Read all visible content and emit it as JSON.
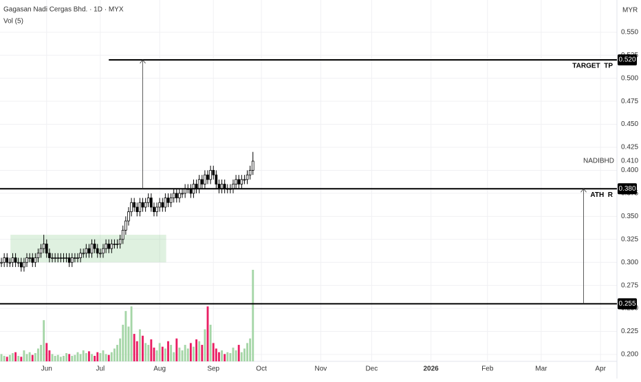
{
  "chart_data": {
    "type": "candlestick",
    "title": "Gagasan Nadi Cergas Bhd. · 1D · MYX",
    "volume_label": "Vol (5)",
    "currency": "MYR",
    "symbol": "NADIBHD",
    "last_price": {
      "value": 0.41,
      "label": "0.410"
    },
    "open": [
      0.3,
      0.3,
      0.305,
      0.3,
      0.3,
      0.305,
      0.3,
      0.3,
      0.295,
      0.3,
      0.305,
      0.305,
      0.3,
      0.305,
      0.31,
      0.315,
      0.32,
      0.31,
      0.305,
      0.305,
      0.305,
      0.305,
      0.305,
      0.305,
      0.305,
      0.3,
      0.305,
      0.305,
      0.305,
      0.31,
      0.31,
      0.315,
      0.31,
      0.32,
      0.315,
      0.31,
      0.31,
      0.315,
      0.32,
      0.315,
      0.32,
      0.32,
      0.32,
      0.325,
      0.335,
      0.345,
      0.355,
      0.365,
      0.36,
      0.355,
      0.365,
      0.36,
      0.365,
      0.37,
      0.36,
      0.355,
      0.36,
      0.365,
      0.36,
      0.37,
      0.365,
      0.37,
      0.375,
      0.37,
      0.375,
      0.375,
      0.38,
      0.38,
      0.375,
      0.385,
      0.38,
      0.39,
      0.385,
      0.395,
      0.39,
      0.4,
      0.395,
      0.385,
      0.38,
      0.385,
      0.38,
      0.38,
      0.38,
      0.385,
      0.39,
      0.385,
      0.39,
      0.39,
      0.395,
      0.4
    ],
    "high": [
      0.305,
      0.31,
      0.31,
      0.305,
      0.31,
      0.31,
      0.305,
      0.305,
      0.305,
      0.31,
      0.31,
      0.31,
      0.31,
      0.315,
      0.32,
      0.33,
      0.325,
      0.315,
      0.31,
      0.31,
      0.31,
      0.31,
      0.31,
      0.31,
      0.31,
      0.31,
      0.31,
      0.31,
      0.315,
      0.315,
      0.32,
      0.32,
      0.325,
      0.325,
      0.32,
      0.315,
      0.32,
      0.325,
      0.325,
      0.325,
      0.325,
      0.325,
      0.33,
      0.34,
      0.35,
      0.36,
      0.37,
      0.37,
      0.365,
      0.37,
      0.37,
      0.37,
      0.375,
      0.375,
      0.365,
      0.365,
      0.37,
      0.37,
      0.375,
      0.375,
      0.375,
      0.38,
      0.38,
      0.38,
      0.38,
      0.385,
      0.385,
      0.385,
      0.39,
      0.39,
      0.395,
      0.395,
      0.4,
      0.4,
      0.405,
      0.405,
      0.4,
      0.39,
      0.39,
      0.39,
      0.385,
      0.385,
      0.39,
      0.395,
      0.395,
      0.395,
      0.395,
      0.4,
      0.405,
      0.42
    ],
    "low": [
      0.295,
      0.295,
      0.295,
      0.295,
      0.295,
      0.295,
      0.295,
      0.29,
      0.29,
      0.295,
      0.3,
      0.295,
      0.295,
      0.3,
      0.305,
      0.31,
      0.305,
      0.3,
      0.3,
      0.3,
      0.3,
      0.3,
      0.3,
      0.3,
      0.295,
      0.295,
      0.3,
      0.3,
      0.3,
      0.305,
      0.305,
      0.305,
      0.305,
      0.31,
      0.305,
      0.305,
      0.305,
      0.31,
      0.31,
      0.31,
      0.315,
      0.315,
      0.315,
      0.32,
      0.33,
      0.34,
      0.35,
      0.355,
      0.35,
      0.35,
      0.355,
      0.355,
      0.36,
      0.355,
      0.35,
      0.35,
      0.355,
      0.355,
      0.355,
      0.36,
      0.36,
      0.365,
      0.365,
      0.365,
      0.37,
      0.37,
      0.375,
      0.37,
      0.37,
      0.375,
      0.375,
      0.38,
      0.38,
      0.385,
      0.385,
      0.39,
      0.38,
      0.375,
      0.375,
      0.375,
      0.375,
      0.375,
      0.375,
      0.38,
      0.38,
      0.38,
      0.385,
      0.385,
      0.39,
      0.395
    ],
    "close": [
      0.3,
      0.305,
      0.3,
      0.3,
      0.305,
      0.3,
      0.3,
      0.295,
      0.3,
      0.305,
      0.305,
      0.3,
      0.305,
      0.31,
      0.315,
      0.32,
      0.31,
      0.305,
      0.305,
      0.305,
      0.305,
      0.305,
      0.305,
      0.305,
      0.3,
      0.305,
      0.305,
      0.305,
      0.31,
      0.31,
      0.315,
      0.31,
      0.32,
      0.315,
      0.31,
      0.31,
      0.315,
      0.32,
      0.315,
      0.32,
      0.32,
      0.32,
      0.325,
      0.335,
      0.345,
      0.355,
      0.365,
      0.36,
      0.355,
      0.365,
      0.36,
      0.365,
      0.37,
      0.36,
      0.355,
      0.36,
      0.365,
      0.36,
      0.37,
      0.365,
      0.37,
      0.375,
      0.37,
      0.375,
      0.375,
      0.38,
      0.38,
      0.375,
      0.385,
      0.38,
      0.39,
      0.385,
      0.395,
      0.39,
      0.4,
      0.395,
      0.385,
      0.38,
      0.385,
      0.38,
      0.38,
      0.38,
      0.385,
      0.39,
      0.385,
      0.39,
      0.39,
      0.395,
      0.4,
      0.41
    ],
    "volume": [
      8,
      6,
      5,
      7,
      9,
      10,
      6,
      5,
      12,
      8,
      10,
      7,
      9,
      14,
      18,
      45,
      20,
      12,
      8,
      6,
      7,
      5,
      6,
      9,
      8,
      6,
      7,
      10,
      8,
      12,
      9,
      11,
      8,
      6,
      10,
      9,
      12,
      8,
      7,
      10,
      14,
      18,
      25,
      40,
      55,
      38,
      60,
      30,
      22,
      35,
      28,
      20,
      18,
      24,
      15,
      12,
      20,
      16,
      14,
      22,
      18,
      10,
      25,
      15,
      12,
      18,
      14,
      20,
      16,
      24,
      22,
      18,
      35,
      60,
      40,
      20,
      14,
      10,
      12,
      8,
      10,
      9,
      15,
      12,
      18,
      10,
      14,
      20,
      25,
      100
    ],
    "vlim": [
      0,
      100
    ],
    "up_color": "#000000",
    "down_color": "#000000",
    "volume_up_color": "#a5d6a7",
    "volume_down_color": "#e91e63",
    "xlim": [
      -0.5,
      217.8
    ],
    "xticks": [
      {
        "value": 16,
        "label": "Jun"
      },
      {
        "value": 35,
        "label": "Jul"
      },
      {
        "value": 56,
        "label": "Aug"
      },
      {
        "value": 75,
        "label": "Sep"
      },
      {
        "value": 92,
        "label": "Oct"
      },
      {
        "value": 113,
        "label": "Nov"
      },
      {
        "value": 131,
        "label": "Dec"
      },
      {
        "value": 152,
        "label": "2026"
      },
      {
        "value": 172,
        "label": "Feb"
      },
      {
        "value": 191,
        "label": "Mar"
      },
      {
        "value": 212,
        "label": "Apr"
      }
    ],
    "ylim": [
      0.1925,
      0.585
    ],
    "yticks": [
      {
        "value": 0.2,
        "label": "0.200"
      },
      {
        "value": 0.225,
        "label": "0.225"
      },
      {
        "value": 0.25,
        "label": "0.250"
      },
      {
        "value": 0.275,
        "label": "0.275"
      },
      {
        "value": 0.3,
        "label": "0.300"
      },
      {
        "value": 0.325,
        "label": "0.325"
      },
      {
        "value": 0.35,
        "label": "0.350"
      },
      {
        "value": 0.375,
        "label": "0.375"
      },
      {
        "value": 0.4,
        "label": "0.400"
      },
      {
        "value": 0.425,
        "label": "0.425"
      },
      {
        "value": 0.45,
        "label": "0.450"
      },
      {
        "value": 0.475,
        "label": "0.475"
      },
      {
        "value": 0.5,
        "label": "0.500"
      },
      {
        "value": 0.525,
        "label": "0.525"
      },
      {
        "value": 0.55,
        "label": "0.550"
      }
    ],
    "grid": true,
    "levels": [
      {
        "value": 0.52,
        "label": "0.520",
        "name": "TARGET  TP",
        "start": 38
      },
      {
        "value": 0.38,
        "label": "0.380",
        "name": "ATH  R",
        "start": -0.5
      },
      {
        "value": 0.255,
        "label": "0.255",
        "start": -0.5
      }
    ],
    "arrows": [
      {
        "x": 50,
        "from": 0.38,
        "to": 0.52
      },
      {
        "x": 206,
        "from": 0.255,
        "to": 0.38
      }
    ],
    "range_box": {
      "x": [
        3.2,
        58.3
      ],
      "y": [
        0.3,
        0.33
      ],
      "color": "rgba(129,199,132,0.25)"
    }
  }
}
